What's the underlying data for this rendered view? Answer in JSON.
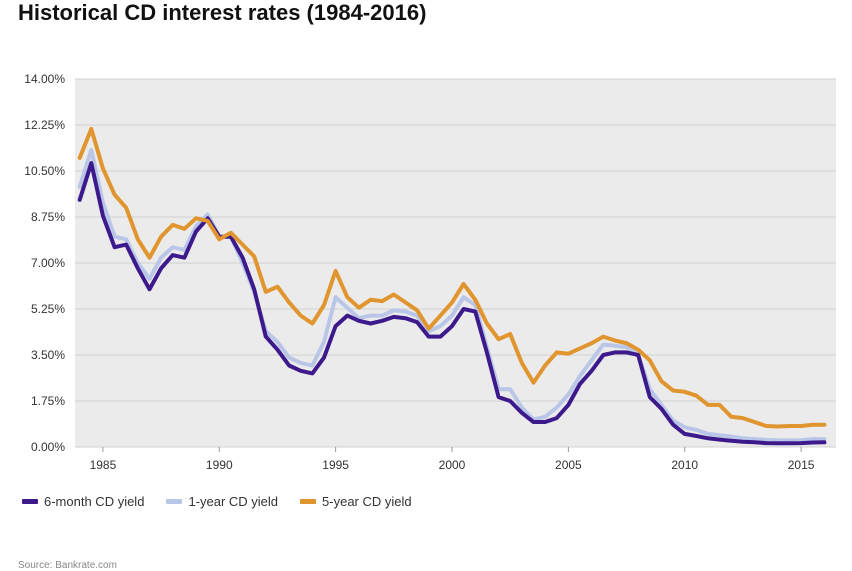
{
  "colors": {
    "plot_bg": "#ebebec",
    "grid": "#d0d0d0",
    "six_month": "#3d1a8c",
    "one_year": "#b9c6e8",
    "five_year": "#e0952e"
  },
  "chart_data": {
    "type": "line",
    "title": "Historical CD interest rates (1984-2016)",
    "source": "Source: Bankrate.com",
    "xlabel": "",
    "ylabel": "",
    "xlim": [
      1983.8,
      2016.5
    ],
    "ylim": [
      0,
      14
    ],
    "y_ticks": [
      "0.00%",
      "1.75%",
      "3.50%",
      "5.25%",
      "7.00%",
      "8.75%",
      "10.50%",
      "12.25%",
      "14.00%"
    ],
    "y_tick_values": [
      0,
      1.75,
      3.5,
      5.25,
      7,
      8.75,
      10.5,
      12.25,
      14
    ],
    "x_ticks": [
      "1985",
      "1990",
      "1995",
      "2000",
      "2005",
      "2010",
      "2015"
    ],
    "x_tick_values": [
      1985,
      1990,
      1995,
      2000,
      2005,
      2010,
      2015
    ],
    "grid": true,
    "legend_position": "bottom-left",
    "series": [
      {
        "name": "6-month CD yield",
        "color_key": "six_month",
        "points": [
          [
            1984.0,
            9.4
          ],
          [
            1984.5,
            10.8
          ],
          [
            1985.0,
            8.8
          ],
          [
            1985.5,
            7.6
          ],
          [
            1986.0,
            7.7
          ],
          [
            1986.5,
            6.8
          ],
          [
            1987.0,
            6.0
          ],
          [
            1987.5,
            6.8
          ],
          [
            1988.0,
            7.3
          ],
          [
            1988.5,
            7.2
          ],
          [
            1989.0,
            8.2
          ],
          [
            1989.5,
            8.7
          ],
          [
            1990.0,
            8.0
          ],
          [
            1990.5,
            8.0
          ],
          [
            1991.0,
            7.2
          ],
          [
            1991.5,
            6.0
          ],
          [
            1992.0,
            4.2
          ],
          [
            1992.5,
            3.7
          ],
          [
            1993.0,
            3.1
          ],
          [
            1993.5,
            2.9
          ],
          [
            1994.0,
            2.8
          ],
          [
            1994.5,
            3.4
          ],
          [
            1995.0,
            4.6
          ],
          [
            1995.5,
            5.0
          ],
          [
            1996.0,
            4.8
          ],
          [
            1996.5,
            4.7
          ],
          [
            1997.0,
            4.8
          ],
          [
            1997.5,
            4.95
          ],
          [
            1998.0,
            4.9
          ],
          [
            1998.5,
            4.75
          ],
          [
            1999.0,
            4.2
          ],
          [
            1999.5,
            4.2
          ],
          [
            2000.0,
            4.6
          ],
          [
            2000.5,
            5.25
          ],
          [
            2001.0,
            5.15
          ],
          [
            2001.5,
            3.6
          ],
          [
            2002.0,
            1.9
          ],
          [
            2002.5,
            1.75
          ],
          [
            2003.0,
            1.3
          ],
          [
            2003.5,
            0.95
          ],
          [
            2004.0,
            0.95
          ],
          [
            2004.5,
            1.1
          ],
          [
            2005.0,
            1.6
          ],
          [
            2005.5,
            2.4
          ],
          [
            2006.0,
            2.9
          ],
          [
            2006.5,
            3.5
          ],
          [
            2007.0,
            3.6
          ],
          [
            2007.5,
            3.6
          ],
          [
            2008.0,
            3.5
          ],
          [
            2008.5,
            1.9
          ],
          [
            2009.0,
            1.45
          ],
          [
            2009.5,
            0.85
          ],
          [
            2010.0,
            0.5
          ],
          [
            2010.5,
            0.42
          ],
          [
            2011.0,
            0.33
          ],
          [
            2011.5,
            0.28
          ],
          [
            2012.0,
            0.24
          ],
          [
            2012.5,
            0.2
          ],
          [
            2013.0,
            0.18
          ],
          [
            2013.5,
            0.15
          ],
          [
            2014.0,
            0.14
          ],
          [
            2014.5,
            0.14
          ],
          [
            2015.0,
            0.15
          ],
          [
            2015.5,
            0.17
          ],
          [
            2016.0,
            0.18
          ]
        ]
      },
      {
        "name": "1-year CD yield",
        "color_key": "one_year",
        "points": [
          [
            1984.0,
            9.9
          ],
          [
            1984.5,
            11.3
          ],
          [
            1985.0,
            9.3
          ],
          [
            1985.5,
            8.0
          ],
          [
            1986.0,
            7.9
          ],
          [
            1986.5,
            7.0
          ],
          [
            1987.0,
            6.4
          ],
          [
            1987.5,
            7.2
          ],
          [
            1988.0,
            7.6
          ],
          [
            1988.5,
            7.5
          ],
          [
            1989.0,
            8.4
          ],
          [
            1989.5,
            8.85
          ],
          [
            1990.0,
            8.0
          ],
          [
            1990.5,
            8.0
          ],
          [
            1991.0,
            7.0
          ],
          [
            1991.5,
            5.9
          ],
          [
            1992.0,
            4.4
          ],
          [
            1992.5,
            4.0
          ],
          [
            1993.0,
            3.4
          ],
          [
            1993.5,
            3.2
          ],
          [
            1994.0,
            3.1
          ],
          [
            1994.5,
            4.0
          ],
          [
            1995.0,
            5.7
          ],
          [
            1995.5,
            5.3
          ],
          [
            1996.0,
            4.9
          ],
          [
            1996.5,
            5.0
          ],
          [
            1997.0,
            5.0
          ],
          [
            1997.5,
            5.2
          ],
          [
            1998.0,
            5.15
          ],
          [
            1998.5,
            5.0
          ],
          [
            1999.0,
            4.4
          ],
          [
            1999.5,
            4.6
          ],
          [
            2000.0,
            5.0
          ],
          [
            2000.5,
            5.7
          ],
          [
            2001.0,
            5.4
          ],
          [
            2001.5,
            3.8
          ],
          [
            2002.0,
            2.2
          ],
          [
            2002.5,
            2.2
          ],
          [
            2003.0,
            1.5
          ],
          [
            2003.5,
            1.05
          ],
          [
            2004.0,
            1.15
          ],
          [
            2004.5,
            1.5
          ],
          [
            2005.0,
            2.0
          ],
          [
            2005.5,
            2.7
          ],
          [
            2006.0,
            3.3
          ],
          [
            2006.5,
            3.9
          ],
          [
            2007.0,
            3.85
          ],
          [
            2007.5,
            3.8
          ],
          [
            2008.0,
            3.5
          ],
          [
            2008.5,
            2.2
          ],
          [
            2009.0,
            1.6
          ],
          [
            2009.5,
            1.0
          ],
          [
            2010.0,
            0.75
          ],
          [
            2010.5,
            0.65
          ],
          [
            2011.0,
            0.5
          ],
          [
            2011.5,
            0.45
          ],
          [
            2012.0,
            0.4
          ],
          [
            2012.5,
            0.33
          ],
          [
            2013.0,
            0.3
          ],
          [
            2013.5,
            0.27
          ],
          [
            2014.0,
            0.25
          ],
          [
            2014.5,
            0.25
          ],
          [
            2015.0,
            0.26
          ],
          [
            2015.5,
            0.3
          ],
          [
            2016.0,
            0.3
          ]
        ]
      },
      {
        "name": "5-year CD yield",
        "color_key": "five_year",
        "points": [
          [
            1984.0,
            11.0
          ],
          [
            1984.5,
            12.1
          ],
          [
            1985.0,
            10.6
          ],
          [
            1985.5,
            9.6
          ],
          [
            1986.0,
            9.1
          ],
          [
            1986.5,
            7.9
          ],
          [
            1987.0,
            7.2
          ],
          [
            1987.5,
            8.0
          ],
          [
            1988.0,
            8.45
          ],
          [
            1988.5,
            8.3
          ],
          [
            1989.0,
            8.7
          ],
          [
            1989.5,
            8.6
          ],
          [
            1990.0,
            7.9
          ],
          [
            1990.5,
            8.15
          ],
          [
            1991.0,
            7.7
          ],
          [
            1991.5,
            7.25
          ],
          [
            1992.0,
            5.9
          ],
          [
            1992.5,
            6.1
          ],
          [
            1993.0,
            5.5
          ],
          [
            1993.5,
            5.0
          ],
          [
            1994.0,
            4.7
          ],
          [
            1994.5,
            5.4
          ],
          [
            1995.0,
            6.7
          ],
          [
            1995.5,
            5.7
          ],
          [
            1996.0,
            5.3
          ],
          [
            1996.5,
            5.6
          ],
          [
            1997.0,
            5.55
          ],
          [
            1997.5,
            5.8
          ],
          [
            1998.0,
            5.5
          ],
          [
            1998.5,
            5.2
          ],
          [
            1999.0,
            4.5
          ],
          [
            1999.5,
            5.0
          ],
          [
            2000.0,
            5.5
          ],
          [
            2000.5,
            6.2
          ],
          [
            2001.0,
            5.6
          ],
          [
            2001.5,
            4.7
          ],
          [
            2002.0,
            4.1
          ],
          [
            2002.5,
            4.3
          ],
          [
            2003.0,
            3.2
          ],
          [
            2003.5,
            2.45
          ],
          [
            2004.0,
            3.1
          ],
          [
            2004.5,
            3.6
          ],
          [
            2005.0,
            3.55
          ],
          [
            2005.5,
            3.75
          ],
          [
            2006.0,
            3.95
          ],
          [
            2006.5,
            4.2
          ],
          [
            2007.0,
            4.05
          ],
          [
            2007.5,
            3.95
          ],
          [
            2008.0,
            3.7
          ],
          [
            2008.5,
            3.3
          ],
          [
            2009.0,
            2.5
          ],
          [
            2009.5,
            2.15
          ],
          [
            2010.0,
            2.1
          ],
          [
            2010.5,
            1.95
          ],
          [
            2011.0,
            1.6
          ],
          [
            2011.5,
            1.6
          ],
          [
            2012.0,
            1.15
          ],
          [
            2012.5,
            1.1
          ],
          [
            2013.0,
            0.95
          ],
          [
            2013.5,
            0.8
          ],
          [
            2014.0,
            0.78
          ],
          [
            2014.5,
            0.8
          ],
          [
            2015.0,
            0.8
          ],
          [
            2015.5,
            0.85
          ],
          [
            2016.0,
            0.85
          ]
        ]
      }
    ]
  }
}
